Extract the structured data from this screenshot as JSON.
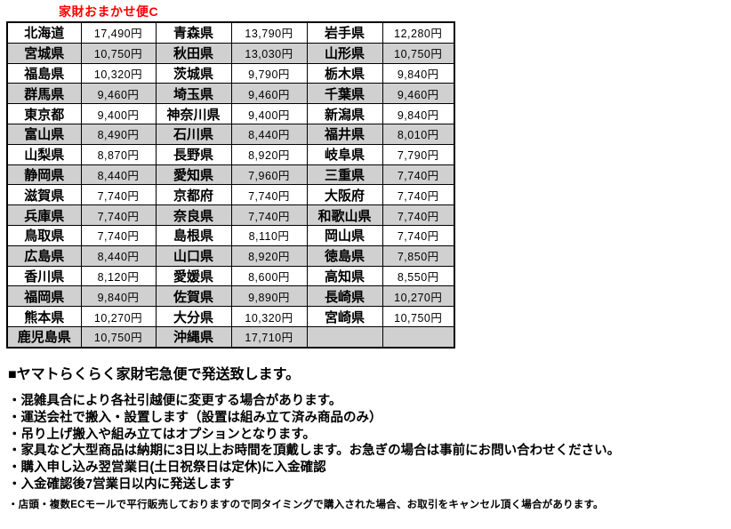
{
  "title": "家財おまかせ便C",
  "table": {
    "rows": [
      [
        "北海道",
        "17,490円",
        "青森県",
        "13,790円",
        "岩手県",
        "12,280円"
      ],
      [
        "宮城県",
        "10,750円",
        "秋田県",
        "13,030円",
        "山形県",
        "10,750円"
      ],
      [
        "福島県",
        "10,320円",
        "茨城県",
        "9,790円",
        "栃木県",
        "9,840円"
      ],
      [
        "群馬県",
        "9,460円",
        "埼玉県",
        "9,460円",
        "千葉県",
        "9,460円"
      ],
      [
        "東京都",
        "9,400円",
        "神奈川県",
        "9,400円",
        "新潟県",
        "9,840円"
      ],
      [
        "富山県",
        "8,490円",
        "石川県",
        "8,440円",
        "福井県",
        "8,010円"
      ],
      [
        "山梨県",
        "8,870円",
        "長野県",
        "8,920円",
        "岐阜県",
        "7,790円"
      ],
      [
        "静岡県",
        "8,440円",
        "愛知県",
        "7,960円",
        "三重県",
        "7,740円"
      ],
      [
        "滋賀県",
        "7,740円",
        "京都府",
        "7,740円",
        "大阪府",
        "7,740円"
      ],
      [
        "兵庫県",
        "7,740円",
        "奈良県",
        "7,740円",
        "和歌山県",
        "7,740円"
      ],
      [
        "鳥取県",
        "7,740円",
        "島根県",
        "8,110円",
        "岡山県",
        "7,740円"
      ],
      [
        "広島県",
        "8,440円",
        "山口県",
        "8,920円",
        "徳島県",
        "7,850円"
      ],
      [
        "香川県",
        "8,120円",
        "愛媛県",
        "8,600円",
        "高知県",
        "8,550円"
      ],
      [
        "福岡県",
        "9,840円",
        "佐賀県",
        "9,890円",
        "長崎県",
        "10,270円"
      ],
      [
        "熊本県",
        "10,270円",
        "大分県",
        "10,320円",
        "宮崎県",
        "10,750円"
      ],
      [
        "鹿児島県",
        "10,750円",
        "沖縄県",
        "17,710円",
        "",
        ""
      ]
    ]
  },
  "notes": {
    "heading": "■ヤマトらくらく家財宅急便で発送致します。",
    "bullets": [
      "・混雑具合により各社引越便に変更する場合があります。",
      "・運送会社で搬入・設置します（設置は組み立て済み商品のみ）",
      "・吊り上げ搬入や組み立てはオプションとなります。",
      "・家具など大型商品は納期に3日以上お時間を頂戴します。お急ぎの場合は事前にお問い合わせください。",
      "・購入申し込み翌営業日(土日祝祭日は定休)に入金確認",
      "・入金確認後7営業日以内に発送します"
    ],
    "small_note": "・店頭・複数ECモールで平行販売しておりますので同タイミングで購入された場合、お取引をキャンセル頂く場合があります。"
  },
  "colors": {
    "title": "#ff0000",
    "row_alt": "#d0d0d0",
    "border": "#000000"
  }
}
